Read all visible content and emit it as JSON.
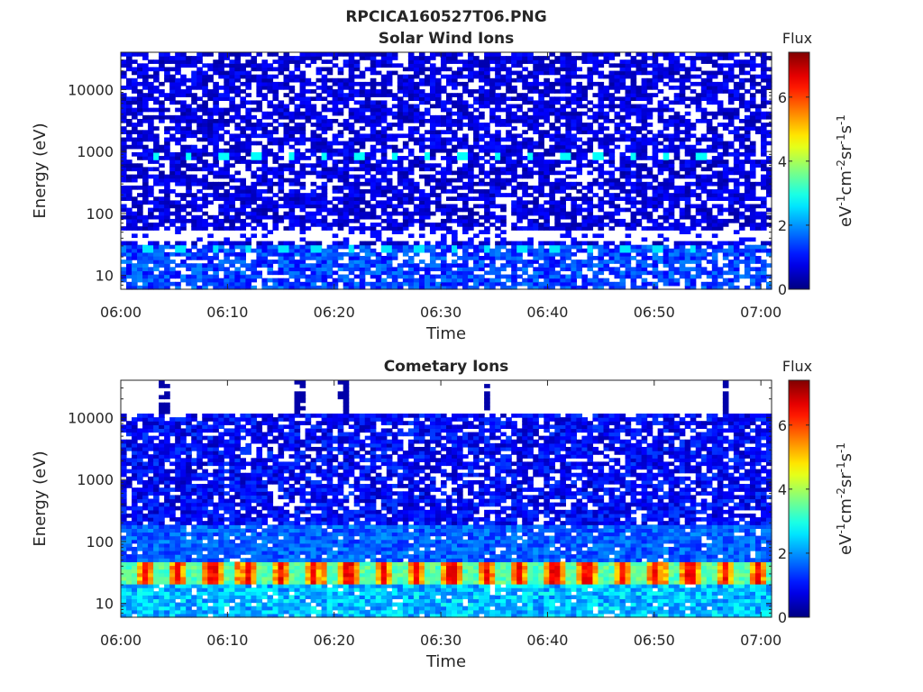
{
  "figure": {
    "title": "RPCICA160527T06.PNG"
  },
  "colors": {
    "colormap": "jet",
    "axes_color": "#262626",
    "background": "#ffffff"
  },
  "chart_data": [
    {
      "type": "heatmap",
      "title": "Solar Wind Ions",
      "xlabel": "Time",
      "ylabel": "Energy (eV)",
      "x_ticks": [
        "06:00",
        "06:10",
        "06:20",
        "06:30",
        "06:40",
        "06:50",
        "07:00"
      ],
      "x_range_minutes": [
        0,
        61
      ],
      "y_scale": "log",
      "y_range_eV": [
        6,
        40000
      ],
      "y_ticks": [
        10,
        100,
        1000,
        10000
      ],
      "y_tick_labels": [
        "10",
        "100",
        "1000",
        "10000"
      ],
      "colorbar": {
        "label_title": "Flux",
        "unit_label": "eV-1cm-2sr-1s-1",
        "range": [
          0,
          7.4
        ],
        "ticks": [
          0,
          2,
          4,
          6
        ],
        "tick_labels": [
          "0",
          "2",
          "4",
          "6"
        ]
      },
      "features": {
        "background_flux": 0.6,
        "low_energy_band_eV": [
          6,
          30
        ],
        "low_energy_band_flux": 1.4,
        "periodic_spots_energy_eV": 800,
        "periodic_spots_flux": 2.8,
        "periodic_spots_minutes": [
          0.9,
          4.1,
          7.3,
          10.5,
          13.7,
          16.9,
          20.1,
          23.3,
          26.5,
          29.7,
          32.9,
          36.1,
          39.3,
          42.5,
          45.7,
          48.9,
          52.1
        ],
        "secondary_spots_energy_eV": 30,
        "secondary_spots_flux": 2.6,
        "gap_band_eV": [
          35,
          55
        ],
        "grid": false
      }
    },
    {
      "type": "heatmap",
      "title": "Cometary Ions",
      "xlabel": "Time",
      "ylabel": "Energy (eV)",
      "x_ticks": [
        "06:00",
        "06:10",
        "06:20",
        "06:30",
        "06:40",
        "06:50",
        "07:00"
      ],
      "x_range_minutes": [
        0,
        61
      ],
      "y_scale": "log",
      "y_range_eV": [
        6,
        40000
      ],
      "y_ticks": [
        10,
        100,
        1000,
        10000
      ],
      "y_tick_labels": [
        "10",
        "100",
        "1000",
        "10000"
      ],
      "colorbar": {
        "label_title": "Flux",
        "unit_label": "eV-1cm-2sr-1s-1",
        "range": [
          0,
          7.4
        ],
        "ticks": [
          0,
          2,
          4,
          6
        ],
        "tick_labels": [
          "0",
          "2",
          "4",
          "6"
        ]
      },
      "features": {
        "data_top_eV": 11000,
        "background_flux": 0.9,
        "enhanced_band_eV": [
          22,
          48
        ],
        "enhanced_band_flux": 5.6,
        "enhanced_band_peak_flux": 6.8,
        "enhanced_band_minutes": [
          2.2,
          5.4,
          8.6,
          11.8,
          15.0,
          18.2,
          21.4,
          24.6,
          27.8,
          31.0,
          34.2,
          37.4,
          40.6,
          43.8,
          47.0,
          50.2,
          53.4,
          56.6,
          59.8
        ],
        "low_energy_flux": 2.3,
        "high_energy_streaks_minutes": [
          4.0,
          16.8,
          20.8,
          34.4,
          56.8
        ],
        "grid": false
      }
    }
  ]
}
